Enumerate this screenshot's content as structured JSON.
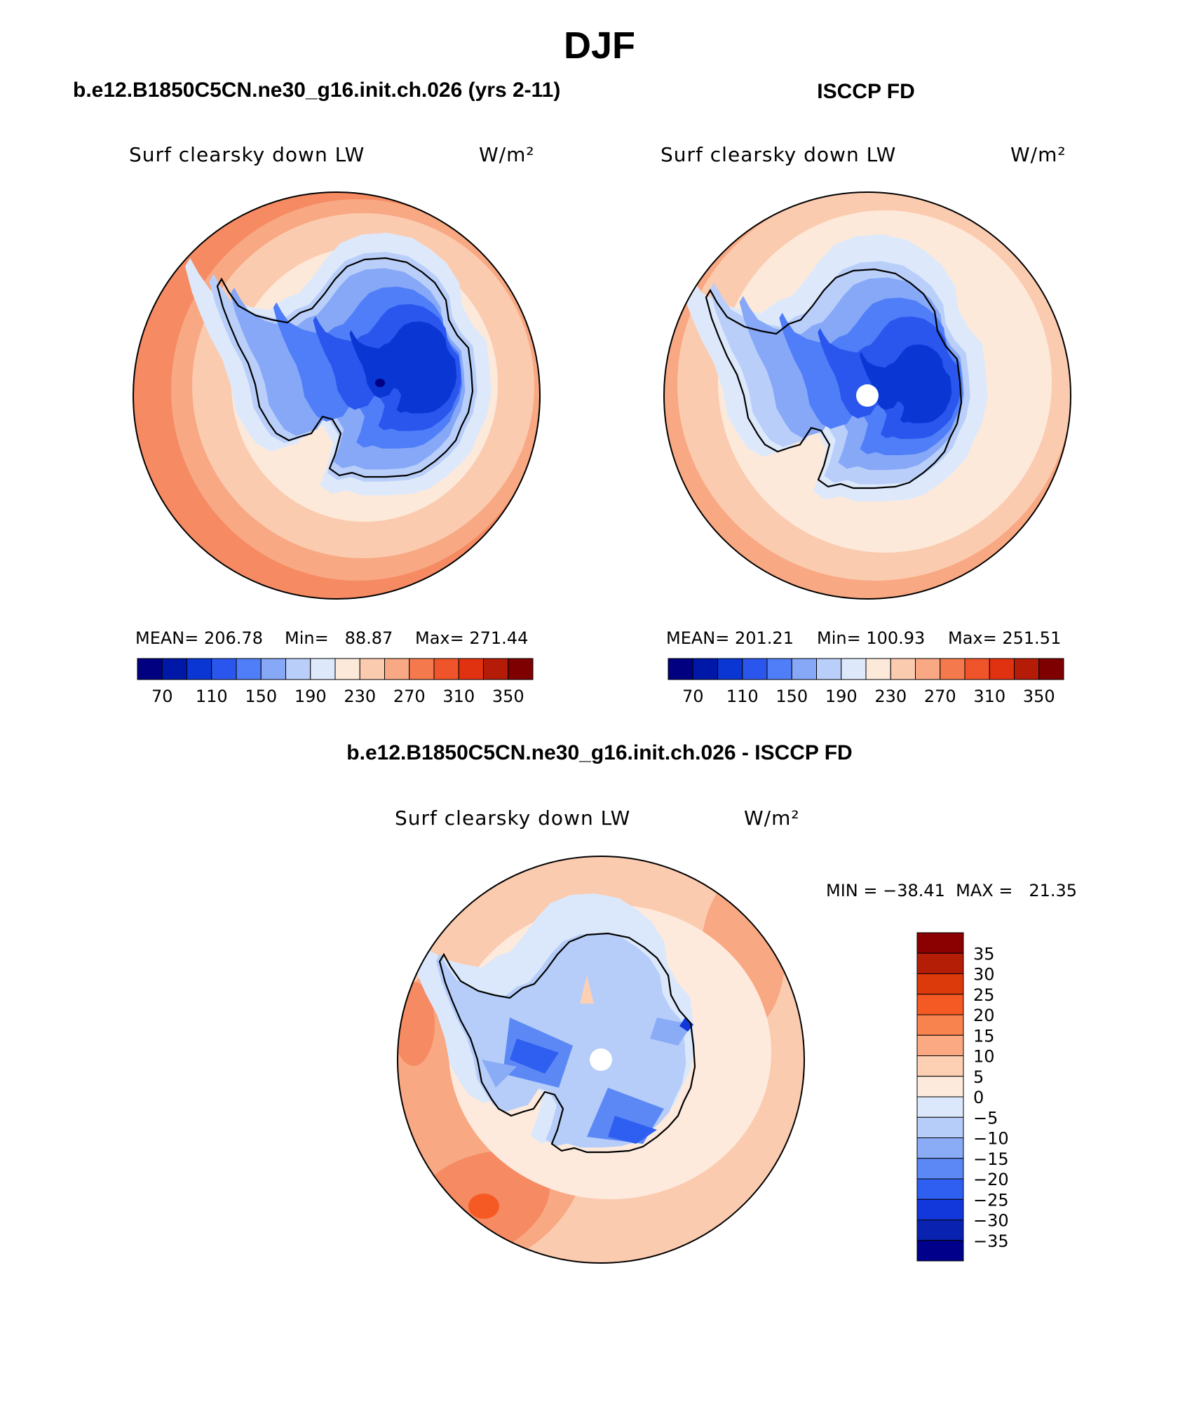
{
  "figure": {
    "title": "DJF"
  },
  "panels": [
    {
      "id": "model",
      "header": "b.e12.B1850C5CN.ne30_g16.init.ch.026 (yrs 2-11)",
      "variable": "Surf clearsky down LW",
      "units": "W/m²",
      "stats": {
        "mean": "MEAN= 206.78",
        "min": "Min=   88.87",
        "max": "Max= 271.44"
      },
      "has_pole_hole": false
    },
    {
      "id": "obs",
      "header": "ISCCP FD",
      "variable": "Surf clearsky down LW",
      "units": "W/m²",
      "stats": {
        "mean": "MEAN= 201.21",
        "min": "Min= 100.93",
        "max": "Max= 251.51"
      },
      "has_pole_hole": true
    },
    {
      "id": "diff",
      "header": "b.e12.B1850C5CN.ne30_g16.init.ch.026 - ISCCP FD",
      "variable": "Surf clearsky down LW",
      "units": "W/m²",
      "stats": {
        "minmax": "MIN = −38.41  MAX =   21.35"
      },
      "has_pole_hole": true
    }
  ],
  "colorbar_abs": {
    "colors": [
      "#000080",
      "#0018a8",
      "#0a36d4",
      "#2a56ee",
      "#4f7ef8",
      "#86a8f7",
      "#b9cffa",
      "#dde9fb",
      "#fde9da",
      "#fbcbb0",
      "#f8a882",
      "#f47a4e",
      "#f0542a",
      "#e03210",
      "#b41c08",
      "#7f0000"
    ],
    "tick_labels": [
      "70",
      "110",
      "150",
      "190",
      "230",
      "270",
      "310",
      "350"
    ]
  },
  "colorbar_diff": {
    "colors_top_to_bottom": [
      "#8b0000",
      "#b51e06",
      "#dd3a0c",
      "#f55a25",
      "#f8834f",
      "#faa983",
      "#fdd0b4",
      "#fdeadc",
      "#dbe8fb",
      "#b6cdf9",
      "#8aacf7",
      "#5c88f5",
      "#2f5ff1",
      "#1238dc",
      "#0a22b0",
      "#00008b"
    ],
    "tick_labels": [
      "35",
      "30",
      "25",
      "20",
      "15",
      "10",
      "5",
      "0",
      "−5",
      "−10",
      "−15",
      "−20",
      "−25",
      "−30",
      "−35"
    ]
  },
  "map_colors": {
    "ring_outer": "#f58a63",
    "ring_mid": "#f8a882",
    "ring_inner": "#fbcbb0",
    "ocean_near": "#fde9da",
    "shelf": "#dde9fb",
    "ice_edge": "#b9cffa",
    "ice_mid": "#86a8f7",
    "ice_high": "#4f7ef8",
    "ice_core": "#2a56ee",
    "ice_deep": "#0a36d4",
    "ice_min": "#000080"
  }
}
